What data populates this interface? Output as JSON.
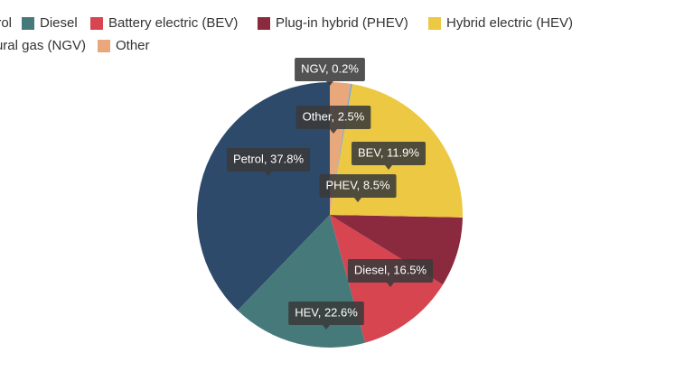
{
  "chart_data": {
    "type": "pie",
    "categories": [
      "Petrol",
      "Diesel",
      "Battery electric (BEV)",
      "Plug-in hybrid (PHEV)",
      "Hybrid electric (HEV)",
      "Natural gas (NGV)",
      "Other"
    ],
    "values": [
      37.8,
      16.5,
      11.9,
      8.5,
      22.6,
      0.2,
      2.5
    ],
    "value_labels": [
      "Petrol, 37.8%",
      "Diesel, 16.5%",
      "BEV, 11.9%",
      "PHEV, 8.5%",
      "HEV, 22.6%",
      "NGV, 0.2%",
      "Other, 2.5%"
    ],
    "colors": [
      "#2e4a6b",
      "#467a7a",
      "#d64550",
      "#8b2a3e",
      "#ecc843",
      "#7fa7c9",
      "#e8a87c"
    ]
  }
}
